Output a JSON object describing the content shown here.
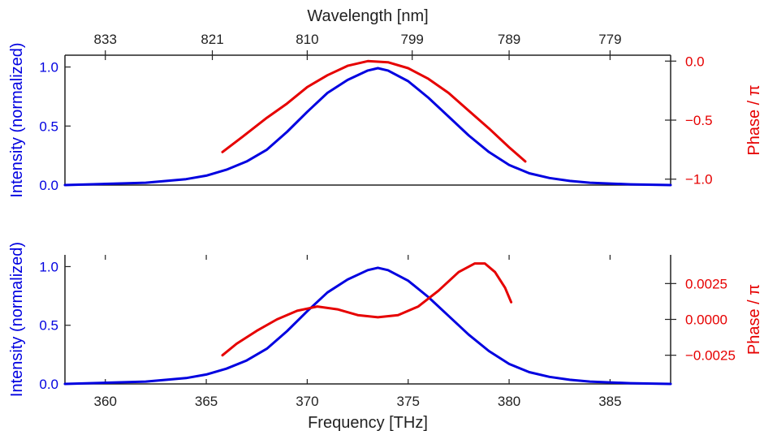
{
  "colors": {
    "intensity": "#0000e0",
    "phase": "#e60000",
    "axis": "#222222"
  },
  "chart_data": [
    {
      "type": "line",
      "title": "",
      "top_axis": {
        "label": "Wavelength [nm]",
        "ticks": [
          {
            "label": "833",
            "freq": 360
          },
          {
            "label": "821",
            "freq": 365.3
          },
          {
            "label": "810",
            "freq": 370
          },
          {
            "label": "799",
            "freq": 375.2
          },
          {
            "label": "789",
            "freq": 380
          },
          {
            "label": "779",
            "freq": 385
          }
        ]
      },
      "xlim": [
        358,
        388
      ],
      "ylabel_left": "Intensity (normalized)",
      "ylabel_right": "Phase / π",
      "ylim_left": [
        0,
        1.1
      ],
      "ylim_right": [
        -1.05,
        0.05
      ],
      "yticks_left": [
        0.0,
        0.5,
        1.0
      ],
      "yticks_left_labels": [
        "0.0",
        "0.5",
        "1.0"
      ],
      "yticks_right": [
        0.0,
        -0.5,
        -1.0
      ],
      "yticks_right_labels": [
        "0.0",
        "−0.5",
        "−1.0"
      ],
      "series": [
        {
          "axis": "left",
          "x": [
            358,
            362,
            364,
            365,
            366,
            367,
            368,
            369,
            370,
            371,
            372,
            373,
            373.5,
            374,
            375,
            376,
            377,
            378,
            379,
            380,
            381,
            382,
            383,
            384,
            386,
            388
          ],
          "y": [
            0.0,
            0.02,
            0.05,
            0.08,
            0.13,
            0.2,
            0.3,
            0.45,
            0.62,
            0.78,
            0.89,
            0.97,
            0.99,
            0.97,
            0.88,
            0.74,
            0.58,
            0.42,
            0.28,
            0.17,
            0.1,
            0.06,
            0.035,
            0.02,
            0.006,
            0.0
          ]
        },
        {
          "axis": "right",
          "x": [
            365.8,
            366.8,
            368,
            369,
            370,
            371,
            372,
            373,
            374,
            375,
            376,
            377,
            378,
            379,
            380,
            380.8
          ],
          "y": [
            -0.77,
            -0.64,
            -0.48,
            -0.36,
            -0.22,
            -0.12,
            -0.04,
            0.0,
            -0.01,
            -0.06,
            -0.15,
            -0.27,
            -0.42,
            -0.57,
            -0.73,
            -0.85
          ]
        }
      ]
    },
    {
      "type": "line",
      "title": "",
      "xlabel": "Frequency [THz]",
      "xlim": [
        358,
        388
      ],
      "xticks": [
        360,
        365,
        370,
        375,
        380,
        385
      ],
      "xtick_labels": [
        "360",
        "365",
        "370",
        "375",
        "380",
        "385"
      ],
      "ylabel_left": "Intensity (normalized)",
      "ylabel_right": "Phase / π",
      "ylim_left": [
        0,
        1.1
      ],
      "ylim_right": [
        -0.0045,
        0.0045
      ],
      "yticks_left": [
        0.0,
        0.5,
        1.0
      ],
      "yticks_left_labels": [
        "0.0",
        "0.5",
        "1.0"
      ],
      "yticks_right": [
        0.0025,
        0.0,
        -0.0025
      ],
      "yticks_right_labels": [
        "0.0025",
        "0.0000",
        "−0.0025"
      ],
      "series": [
        {
          "axis": "left",
          "x": [
            358,
            362,
            364,
            365,
            366,
            367,
            368,
            369,
            370,
            371,
            372,
            373,
            373.5,
            374,
            375,
            376,
            377,
            378,
            379,
            380,
            381,
            382,
            383,
            384,
            386,
            388
          ],
          "y": [
            0.0,
            0.02,
            0.05,
            0.08,
            0.13,
            0.2,
            0.3,
            0.45,
            0.62,
            0.78,
            0.89,
            0.97,
            0.99,
            0.97,
            0.88,
            0.74,
            0.58,
            0.42,
            0.28,
            0.17,
            0.1,
            0.06,
            0.035,
            0.02,
            0.006,
            0.0
          ]
        },
        {
          "axis": "right",
          "x": [
            365.8,
            366.5,
            367.5,
            368.5,
            369.5,
            370.5,
            371.5,
            372.5,
            373.5,
            374.5,
            375.5,
            376.5,
            377.5,
            378.3,
            378.8,
            379.3,
            379.8,
            380.1
          ],
          "y": [
            -0.0025,
            -0.0017,
            -0.0008,
            0.0,
            0.0006,
            0.0009,
            0.0007,
            0.0003,
            0.00015,
            0.0003,
            0.0009,
            0.002,
            0.0033,
            0.0039,
            0.0039,
            0.0033,
            0.0022,
            0.0012
          ]
        }
      ]
    }
  ]
}
